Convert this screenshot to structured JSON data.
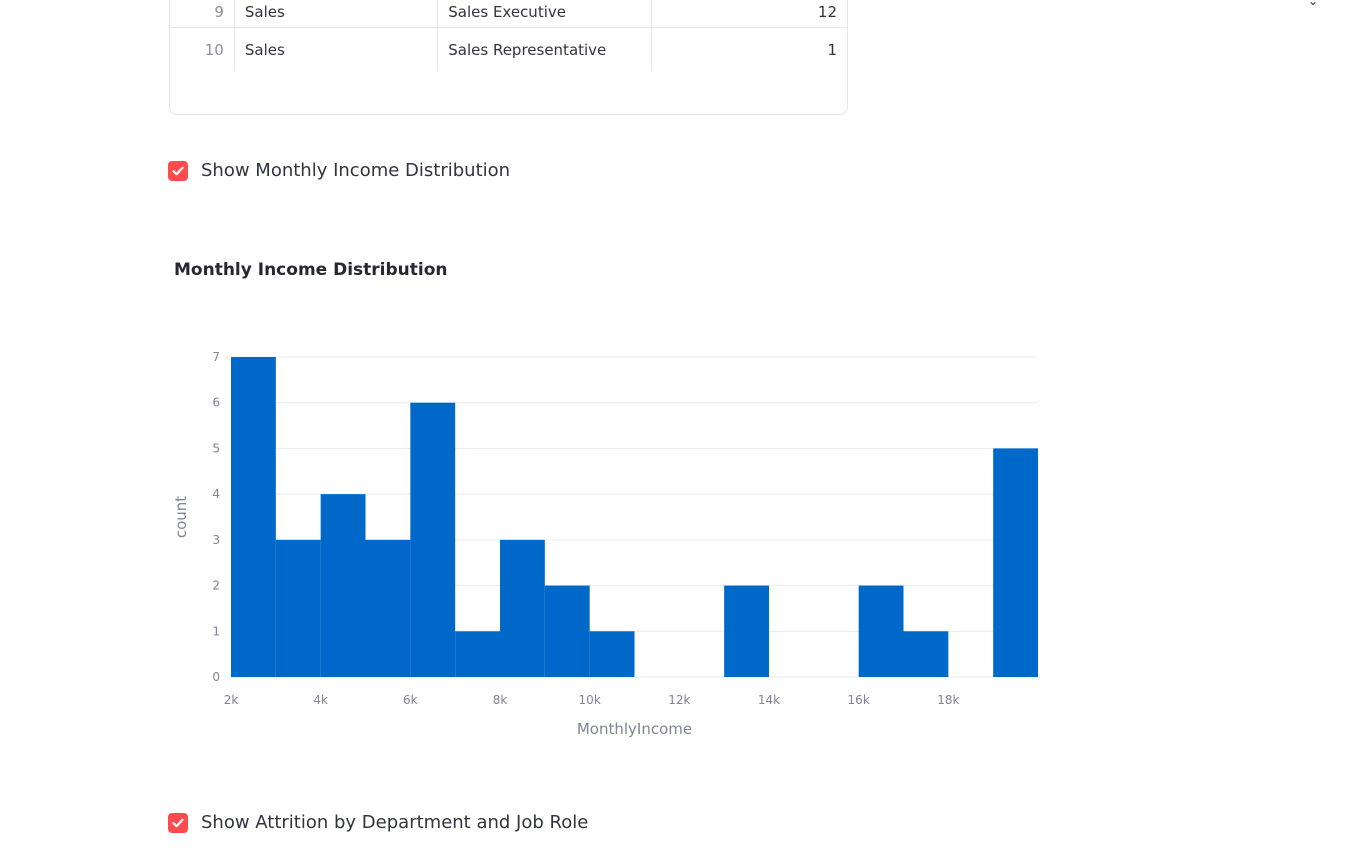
{
  "table": {
    "rows": [
      {
        "index": "9",
        "department": "Sales",
        "job_role": "Sales Executive",
        "count": "12"
      },
      {
        "index": "10",
        "department": "Sales",
        "job_role": "Sales Representative",
        "count": "1"
      }
    ]
  },
  "checkboxes": {
    "income": {
      "label": "Show Monthly Income Distribution",
      "checked": true
    },
    "attrition": {
      "label": "Show Attrition by Department and Job Role",
      "checked": true
    }
  },
  "colors": {
    "bar": "#0068c9",
    "checkbox": "#ff4b4b"
  },
  "chart_data": {
    "type": "bar",
    "title": "Monthly Income Distribution",
    "xlabel": "MonthlyIncome",
    "ylabel": "count",
    "bins": [
      {
        "x0": 2000,
        "x1": 3000,
        "count": 7
      },
      {
        "x0": 3000,
        "x1": 4000,
        "count": 3
      },
      {
        "x0": 4000,
        "x1": 5000,
        "count": 4
      },
      {
        "x0": 5000,
        "x1": 6000,
        "count": 3
      },
      {
        "x0": 6000,
        "x1": 7000,
        "count": 6
      },
      {
        "x0": 7000,
        "x1": 8000,
        "count": 1
      },
      {
        "x0": 8000,
        "x1": 9000,
        "count": 3
      },
      {
        "x0": 9000,
        "x1": 10000,
        "count": 2
      },
      {
        "x0": 10000,
        "x1": 11000,
        "count": 1
      },
      {
        "x0": 11000,
        "x1": 12000,
        "count": 0
      },
      {
        "x0": 12000,
        "x1": 13000,
        "count": 0
      },
      {
        "x0": 13000,
        "x1": 14000,
        "count": 2
      },
      {
        "x0": 14000,
        "x1": 15000,
        "count": 0
      },
      {
        "x0": 15000,
        "x1": 16000,
        "count": 0
      },
      {
        "x0": 16000,
        "x1": 17000,
        "count": 2
      },
      {
        "x0": 17000,
        "x1": 18000,
        "count": 1
      },
      {
        "x0": 18000,
        "x1": 19000,
        "count": 0
      },
      {
        "x0": 19000,
        "x1": 20000,
        "count": 5
      }
    ],
    "xlim": [
      2000,
      20000
    ],
    "ylim": [
      0,
      7
    ],
    "xticks": [
      {
        "value": 2000,
        "label": "2k"
      },
      {
        "value": 4000,
        "label": "4k"
      },
      {
        "value": 6000,
        "label": "6k"
      },
      {
        "value": 8000,
        "label": "8k"
      },
      {
        "value": 10000,
        "label": "10k"
      },
      {
        "value": 12000,
        "label": "12k"
      },
      {
        "value": 14000,
        "label": "14k"
      },
      {
        "value": 16000,
        "label": "16k"
      },
      {
        "value": 18000,
        "label": "18k"
      }
    ],
    "yticks": [
      {
        "value": 0,
        "label": "0"
      },
      {
        "value": 1,
        "label": "1"
      },
      {
        "value": 2,
        "label": "2"
      },
      {
        "value": 3,
        "label": "3"
      },
      {
        "value": 4,
        "label": "4"
      },
      {
        "value": 5,
        "label": "5"
      },
      {
        "value": 6,
        "label": "6"
      },
      {
        "value": 7,
        "label": "7"
      }
    ],
    "grid": true,
    "legend": "none"
  }
}
